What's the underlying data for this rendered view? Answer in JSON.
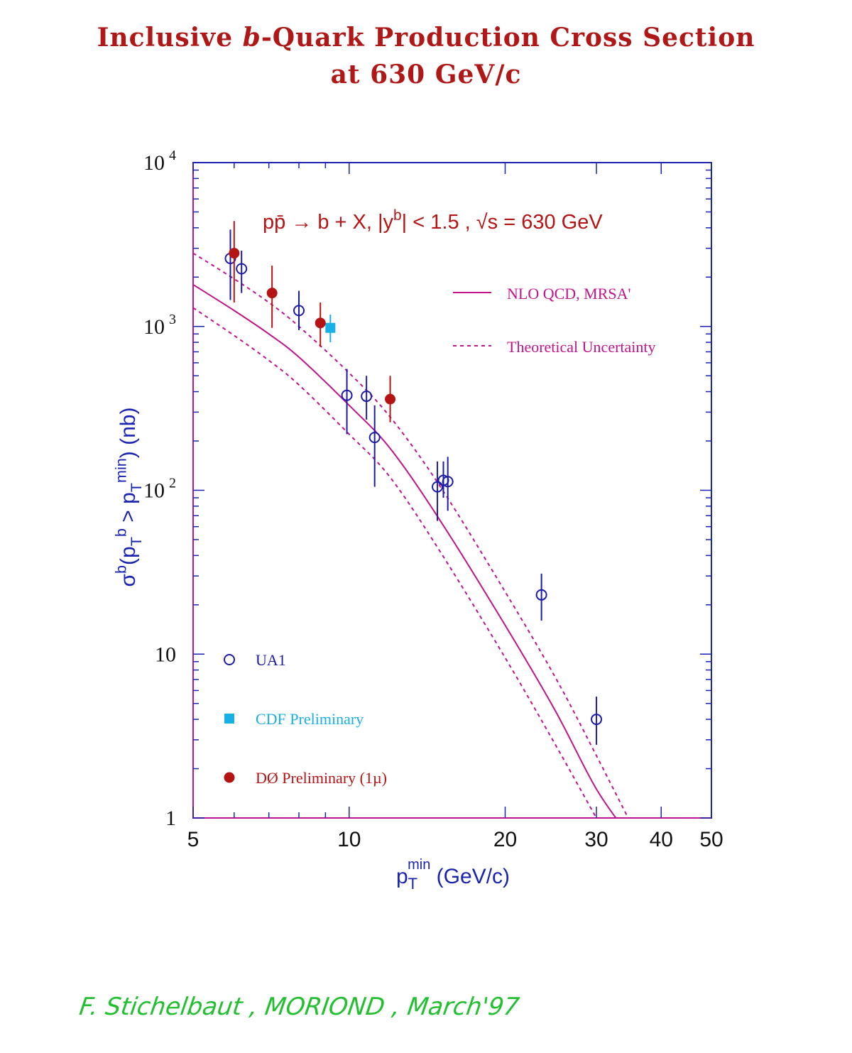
{
  "colors": {
    "title": "#b01818",
    "frame": "#1a24b0",
    "curve": "#c0148c",
    "ua1": "#1c1ca8",
    "cdf": "#18b0e6",
    "d0": "#b41414",
    "annotation": "#b41414",
    "signature": "#22c030"
  },
  "title": {
    "line1_a": "Inclusive ",
    "line1_b": "b",
    "line1_c": "-Quark Production Cross Section",
    "line2": "at 630 GeV/c"
  },
  "signature": "F. Stichelbaut , MORIOND , March'97",
  "chart_data": {
    "type": "scatter",
    "x_scale": "log",
    "y_scale": "log",
    "xlim": [
      5,
      50
    ],
    "ylim": [
      1,
      10000
    ],
    "x_ticks": [
      {
        "value": 5,
        "label": "5"
      },
      {
        "value": 10,
        "label": "10"
      },
      {
        "value": 20,
        "label": "20"
      },
      {
        "value": 30,
        "label": "30"
      },
      {
        "value": 40,
        "label": "40"
      },
      {
        "value": 50,
        "label": "50"
      }
    ],
    "y_ticks": [
      {
        "value": 1,
        "base": "1",
        "exp": ""
      },
      {
        "value": 10,
        "base": "10",
        "exp": ""
      },
      {
        "value": 100,
        "base": "10",
        "exp": "2"
      },
      {
        "value": 1000,
        "base": "10",
        "exp": "3"
      },
      {
        "value": 10000,
        "base": "10",
        "exp": "4"
      }
    ],
    "xlabel": {
      "main": "p",
      "sub": "T",
      "sup": "min",
      "rest": " (GeV/c)"
    },
    "ylabel": {
      "parts": [
        {
          "t": "σ"
        },
        {
          "t": "b",
          "s": "sup"
        },
        {
          "t": "(p"
        },
        {
          "t": "T",
          "s": "sub"
        },
        {
          "t": "b",
          "s": "sup"
        },
        {
          "t": " > p"
        },
        {
          "t": "T",
          "s": "sub"
        },
        {
          "t": "min",
          "s": "sup"
        },
        {
          "t": ") (nb)"
        }
      ]
    },
    "annotation": {
      "parts": [
        {
          "t": "pp̄ → b + X,   |y"
        },
        {
          "t": "b",
          "s": "sup"
        },
        {
          "t": "| < 1.5 , √s = 630 GeV"
        }
      ]
    },
    "curve_legend": [
      {
        "label": "NLO QCD, MRSA'",
        "style": "solid"
      },
      {
        "label": "Theoretical Uncertainty",
        "style": "dashed"
      }
    ],
    "marker_legend": [
      {
        "label": "UA1",
        "marker": "open-circle"
      },
      {
        "label": "CDF Preliminary",
        "marker": "filled-square"
      },
      {
        "label": "DØ Preliminary (1µ)",
        "marker": "filled-circle"
      }
    ],
    "series": [
      {
        "name": "UA1",
        "marker": "open-circle",
        "points": [
          {
            "x": 5.9,
            "y": 2600,
            "lo": 1450,
            "hi": 3900
          },
          {
            "x": 6.2,
            "y": 2250,
            "lo": 1600,
            "hi": 2900
          },
          {
            "x": 8.0,
            "y": 1250,
            "lo": 950,
            "hi": 1650
          },
          {
            "x": 9.9,
            "y": 380,
            "lo": 220,
            "hi": 550
          },
          {
            "x": 10.8,
            "y": 375,
            "lo": 270,
            "hi": 500
          },
          {
            "x": 11.2,
            "y": 210,
            "lo": 105,
            "hi": 330
          },
          {
            "x": 14.8,
            "y": 105,
            "lo": 65,
            "hi": 150
          },
          {
            "x": 15.2,
            "y": 115,
            "lo": 90,
            "hi": 150
          },
          {
            "x": 15.5,
            "y": 113,
            "lo": 75,
            "hi": 160
          },
          {
            "x": 23.5,
            "y": 23,
            "lo": 16,
            "hi": 31
          },
          {
            "x": 30.0,
            "y": 4.0,
            "lo": 2.8,
            "hi": 5.5
          }
        ]
      },
      {
        "name": "CDF Preliminary",
        "marker": "filled-square",
        "points": [
          {
            "x": 9.2,
            "y": 980,
            "lo": 800,
            "hi": 1180
          }
        ]
      },
      {
        "name": "DØ Preliminary (1µ)",
        "marker": "filled-circle",
        "points": [
          {
            "x": 6.0,
            "y": 2800,
            "lo": 1400,
            "hi": 4400
          },
          {
            "x": 7.1,
            "y": 1600,
            "lo": 980,
            "hi": 2350
          },
          {
            "x": 8.8,
            "y": 1050,
            "lo": 750,
            "hi": 1400
          },
          {
            "x": 12.0,
            "y": 360,
            "lo": 260,
            "hi": 500
          }
        ]
      }
    ],
    "theory_curves": [
      {
        "name": "NLO QCD, MRSA'",
        "style": "solid",
        "x": [
          5,
          6,
          7,
          8,
          10,
          12,
          15,
          20,
          25,
          30,
          35
        ],
        "y": [
          1800,
          1250,
          900,
          650,
          330,
          180,
          65,
          15,
          4.5,
          1.5,
          0.75
        ]
      },
      {
        "name": "upper",
        "style": "dashed",
        "x": [
          5,
          6,
          7,
          8,
          10,
          12,
          15,
          20,
          25,
          30,
          37
        ],
        "y": [
          2800,
          1950,
          1400,
          1000,
          520,
          280,
          105,
          24,
          7.2,
          2.4,
          0.65
        ]
      },
      {
        "name": "lower",
        "style": "dashed",
        "x": [
          5,
          6,
          7,
          8,
          10,
          12,
          15,
          20,
          25,
          30,
          33
        ],
        "y": [
          1300,
          880,
          620,
          440,
          220,
          120,
          42,
          9.5,
          2.8,
          1.0,
          0.6
        ]
      }
    ]
  }
}
